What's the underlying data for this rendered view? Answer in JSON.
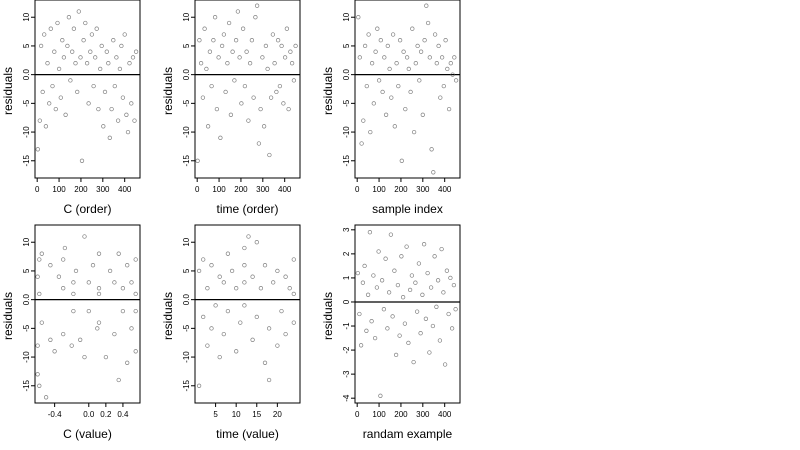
{
  "chart_data": [
    {
      "type": "scatter",
      "id": "c_order",
      "xlabel": "C (order)",
      "ylabel": "residuals",
      "xlim": [
        -10,
        470
      ],
      "ylim": [
        -18,
        13
      ],
      "xticks": [
        0,
        100,
        200,
        300,
        400
      ],
      "xtick_labels": [
        "0",
        "100",
        "200",
        "300",
        "400"
      ],
      "yticks": [
        -15,
        -10,
        -5,
        0,
        5,
        10
      ],
      "ytick_labels": [
        "-15",
        "-10",
        "-5",
        "0.0",
        "5",
        "10"
      ],
      "hline": 0,
      "grid": false,
      "x": [
        3,
        12,
        18,
        25,
        32,
        40,
        47,
        55,
        62,
        70,
        78,
        85,
        93,
        100,
        108,
        115,
        122,
        130,
        138,
        145,
        152,
        160,
        168,
        175,
        183,
        190,
        198,
        205,
        212,
        220,
        228,
        235,
        243,
        250,
        258,
        265,
        272,
        280,
        288,
        295,
        302,
        310,
        318,
        325,
        332,
        340,
        348,
        355,
        362,
        370,
        378,
        385,
        392,
        400,
        408,
        415,
        422,
        430,
        438,
        445,
        452
      ],
      "y": [
        -13,
        -8,
        5,
        -3,
        7,
        -9,
        2,
        -5,
        8,
        -2,
        4,
        -6,
        9,
        1,
        -4,
        6,
        3,
        -7,
        5,
        10,
        -1,
        4,
        8,
        2,
        -3,
        11,
        3,
        -15,
        6,
        9,
        2,
        -5,
        4,
        7,
        -2,
        3,
        8,
        -6,
        1,
        5,
        -9,
        -3,
        4,
        2,
        -11,
        -6,
        6,
        -2,
        3,
        -8,
        1,
        5,
        -4,
        7,
        -7,
        -10,
        2,
        -5,
        3,
        -8,
        4
      ]
    },
    {
      "type": "scatter",
      "id": "time_order",
      "xlabel": "time (order)",
      "ylabel": "residuals",
      "xlim": [
        -10,
        470
      ],
      "ylim": [
        -18,
        13
      ],
      "xticks": [
        0,
        100,
        200,
        300,
        400
      ],
      "xtick_labels": [
        "0",
        "100",
        "200",
        "300",
        "400"
      ],
      "yticks": [
        -15,
        -10,
        -5,
        0,
        5,
        10
      ],
      "ytick_labels": [
        "-15",
        "-10",
        "-5",
        "0.0",
        "5",
        "10"
      ],
      "hline": 0,
      "grid": false,
      "x": [
        2,
        10,
        18,
        26,
        34,
        42,
        50,
        58,
        66,
        74,
        82,
        90,
        98,
        106,
        114,
        122,
        130,
        138,
        146,
        154,
        162,
        170,
        178,
        186,
        194,
        202,
        210,
        218,
        226,
        234,
        242,
        250,
        258,
        266,
        274,
        282,
        290,
        298,
        306,
        314,
        322,
        330,
        338,
        346,
        354,
        362,
        370,
        378,
        386,
        394,
        402,
        410,
        418,
        426,
        434,
        442,
        450
      ],
      "y": [
        -15,
        6,
        2,
        -4,
        8,
        1,
        -9,
        4,
        -2,
        6,
        10,
        -6,
        3,
        -11,
        5,
        7,
        -3,
        2,
        9,
        -7,
        4,
        -1,
        6,
        11,
        3,
        -5,
        8,
        -2,
        4,
        -8,
        2,
        6,
        -4,
        10,
        12,
        -12,
        -6,
        3,
        -9,
        5,
        1,
        -14,
        -4,
        7,
        2,
        -3,
        6,
        -2,
        5,
        -5,
        3,
        8,
        -6,
        4,
        2,
        -1,
        5
      ]
    },
    {
      "type": "scatter",
      "id": "sample_index",
      "xlabel": "sample index",
      "ylabel": "residuals",
      "xlim": [
        -10,
        470
      ],
      "ylim": [
        -18,
        13
      ],
      "xticks": [
        0,
        100,
        200,
        300,
        400
      ],
      "xtick_labels": [
        "0",
        "100",
        "200",
        "300",
        "400"
      ],
      "yticks": [
        -15,
        -10,
        -5,
        0,
        5,
        10
      ],
      "ytick_labels": [
        "-15",
        "-10",
        "-5",
        "0.0",
        "5",
        "10"
      ],
      "hline": 0,
      "grid": false,
      "x": [
        5,
        12,
        20,
        28,
        36,
        44,
        52,
        60,
        68,
        76,
        84,
        92,
        100,
        108,
        116,
        124,
        132,
        140,
        148,
        156,
        164,
        172,
        180,
        188,
        196,
        204,
        212,
        220,
        228,
        236,
        244,
        252,
        260,
        268,
        276,
        284,
        292,
        300,
        308,
        316,
        324,
        332,
        340,
        348,
        356,
        364,
        372,
        380,
        388,
        396,
        404,
        412,
        420,
        428,
        436,
        444,
        452
      ],
      "y": [
        10,
        3,
        -12,
        -8,
        5,
        -2,
        7,
        -10,
        2,
        -5,
        4,
        8,
        -1,
        6,
        -3,
        3,
        -7,
        5,
        1,
        -4,
        7,
        -9,
        2,
        -2,
        6,
        -15,
        4,
        -6,
        3,
        1,
        -3,
        8,
        -10,
        2,
        5,
        -1,
        4,
        -7,
        6,
        12,
        9,
        3,
        -13,
        -17,
        7,
        2,
        5,
        -4,
        3,
        -2,
        6,
        1,
        -6,
        2,
        0,
        3,
        -1
      ]
    },
    {
      "type": "scatter",
      "id": "c_value",
      "xlabel": "C (value)",
      "ylabel": "residuals",
      "xlim": [
        -0.63,
        0.6
      ],
      "ylim": [
        -18,
        13
      ],
      "xticks": [
        -0.4,
        0.0,
        0.2,
        0.4
      ],
      "xtick_labels": [
        "-0.4",
        "0.0",
        "0.2",
        "0.4"
      ],
      "yticks": [
        -15,
        -10,
        -5,
        0,
        5,
        10
      ],
      "ytick_labels": [
        "-15",
        "-10",
        "-5",
        "0.0",
        "5",
        "10"
      ],
      "hline": 0,
      "grid": false,
      "x": [
        -0.6,
        -0.6,
        -0.6,
        -0.58,
        -0.58,
        -0.58,
        -0.55,
        -0.55,
        -0.5,
        -0.45,
        -0.45,
        -0.4,
        -0.35,
        -0.3,
        -0.3,
        -0.3,
        -0.28,
        -0.2,
        -0.18,
        -0.18,
        -0.18,
        -0.15,
        -0.1,
        -0.05,
        -0.05,
        0.0,
        0.0,
        0.05,
        0.1,
        0.12,
        0.12,
        0.12,
        0.12,
        0.2,
        0.25,
        0.3,
        0.3,
        0.35,
        0.35,
        0.4,
        0.4,
        0.45,
        0.45,
        0.5,
        0.5,
        0.55,
        0.55,
        0.55,
        0.55
      ],
      "y": [
        -13,
        -8,
        4,
        -15,
        1,
        7,
        -4,
        8,
        -17,
        6,
        -7,
        -9,
        4,
        -6,
        2,
        7,
        9,
        -8,
        3,
        1,
        -2,
        5,
        -7,
        11,
        -10,
        3,
        -2,
        6,
        -5,
        8,
        2,
        -4,
        1,
        -10,
        5,
        -6,
        3,
        -14,
        8,
        -2,
        2,
        -11,
        6,
        -5,
        3,
        -9,
        1,
        -2,
        7
      ]
    },
    {
      "type": "scatter",
      "id": "time_value",
      "xlabel": "time (value)",
      "ylabel": "residuals",
      "xlim": [
        0,
        25.5
      ],
      "ylim": [
        -18,
        13
      ],
      "xticks": [
        5,
        10,
        15,
        20
      ],
      "xtick_labels": [
        "5",
        "10",
        "15",
        "20"
      ],
      "yticks": [
        -15,
        -10,
        -5,
        0,
        5,
        10
      ],
      "ytick_labels": [
        "-15",
        "-10",
        "-5",
        "0.0",
        "5",
        "10"
      ],
      "hline": 0,
      "grid": false,
      "x": [
        1,
        1,
        2,
        2,
        3,
        3,
        4,
        4,
        5,
        6,
        6,
        7,
        7,
        8,
        8,
        9,
        10,
        10,
        11,
        12,
        12,
        12,
        12,
        13,
        14,
        14,
        15,
        15,
        16,
        17,
        17,
        18,
        18,
        19,
        20,
        20,
        21,
        22,
        22,
        23,
        24,
        24,
        24
      ],
      "y": [
        5,
        -15,
        7,
        -3,
        2,
        -8,
        6,
        -5,
        -1,
        4,
        -10,
        3,
        -6,
        8,
        -2,
        5,
        -9,
        2,
        -4,
        9,
        3,
        -1,
        6,
        11,
        -7,
        4,
        10,
        -3,
        2,
        -11,
        6,
        -5,
        -14,
        3,
        -8,
        5,
        -2,
        4,
        -6,
        2,
        7,
        -4,
        1
      ]
    },
    {
      "type": "scatter",
      "id": "random_example",
      "xlabel": "randam example",
      "ylabel": "residuals",
      "xlim": [
        -10,
        470
      ],
      "ylim": [
        -4.2,
        3.2
      ],
      "xticks": [
        0,
        100,
        200,
        300,
        400
      ],
      "xtick_labels": [
        "0",
        "100",
        "200",
        "300",
        "400"
      ],
      "yticks": [
        -4,
        -3,
        -2,
        -1,
        0,
        1,
        2,
        3
      ],
      "ytick_labels": [
        "-4",
        "-3",
        "-2",
        "-1",
        "0",
        "1",
        "2",
        "3"
      ],
      "hline": 0,
      "grid": false,
      "x": [
        3,
        10,
        18,
        26,
        34,
        42,
        50,
        58,
        66,
        74,
        82,
        90,
        98,
        106,
        114,
        122,
        130,
        138,
        146,
        154,
        162,
        170,
        178,
        186,
        194,
        202,
        210,
        218,
        226,
        234,
        242,
        250,
        258,
        266,
        274,
        282,
        290,
        298,
        306,
        314,
        322,
        330,
        338,
        346,
        354,
        362,
        370,
        378,
        386,
        394,
        402,
        410,
        418,
        426,
        434,
        442,
        450
      ],
      "y": [
        1.2,
        -0.5,
        -1.8,
        0.8,
        1.5,
        -1.2,
        0.3,
        2.9,
        -0.8,
        1.1,
        -1.5,
        0.6,
        2.1,
        -3.9,
        0.9,
        -0.3,
        1.8,
        -1.1,
        0.4,
        2.8,
        -0.6,
        1.3,
        -2.2,
        0.7,
        -1.4,
        1.9,
        0.2,
        -0.9,
        2.3,
        -1.7,
        0.5,
        1.1,
        -2.5,
        0.8,
        -0.4,
        1.6,
        -1.3,
        0.3,
        2.4,
        -0.7,
        1.2,
        -2.1,
        0.6,
        -1.0,
        1.9,
        -0.2,
        0.9,
        -1.6,
        2.2,
        0.4,
        -2.6,
        1.3,
        -0.5,
        1.0,
        -1.1,
        0.7,
        -0.3
      ]
    }
  ]
}
